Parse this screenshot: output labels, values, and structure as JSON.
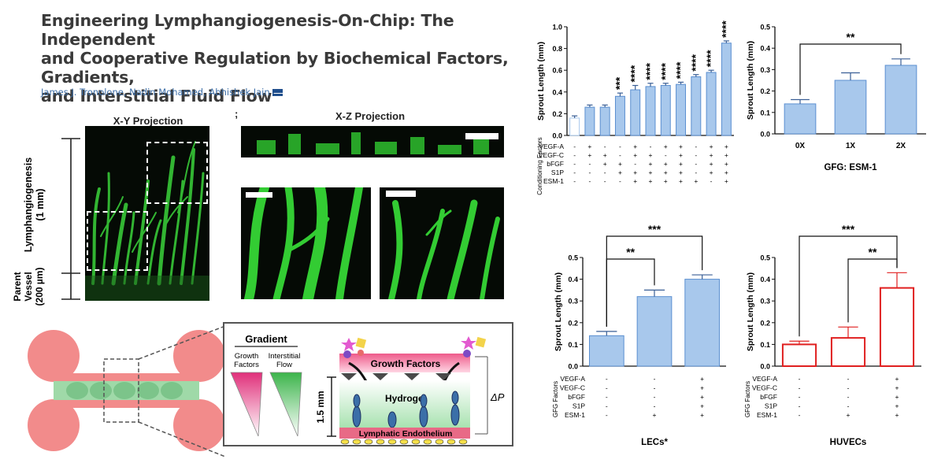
{
  "paper": {
    "title_lines": [
      "Engineering Lymphangiogenesis-On-Chip: The Independent",
      "and Cooperative Regulation by Biochemical Factors, Gradients,",
      "and Interstitial Fluid Flow"
    ],
    "authors": "James J. Tronolone, Nadin Mohamed, Abhishek Jain"
  },
  "micrographs": {
    "xy_title": "X-Y Projection",
    "xz_title": "X-Z Projection",
    "separator": ";",
    "lymph_label_1": "Lymphangiogenesis",
    "lymph_label_2": "(1 mm)",
    "parent_label_1": "Parent",
    "parent_label_2": "Vessel",
    "parent_label_3": "(200 µm)"
  },
  "schematic": {
    "gradient_title": "Gradient",
    "gf_label_1": "Growth",
    "gf_label_2": "Factors",
    "flow_label_1": "Interstitial",
    "flow_label_2": "Flow",
    "growth_factors": "Growth Factors",
    "hydrogel": "Hydrogel",
    "height": "1.5 mm",
    "endothelium": "Lymphatic Endothelium",
    "pressure": "ΔP"
  },
  "chart_data": [
    {
      "type": "bar",
      "ylabel": "Sprout Length (mm)",
      "ylim": [
        0,
        1.0
      ],
      "yticks": [
        "0.0",
        "0.2",
        "0.4",
        "0.6",
        "0.8",
        "1.0"
      ],
      "values": [
        0.16,
        0.26,
        0.26,
        0.36,
        0.42,
        0.45,
        0.46,
        0.47,
        0.54,
        0.58,
        0.85
      ],
      "errors": [
        0.02,
        0.02,
        0.02,
        0.03,
        0.04,
        0.03,
        0.02,
        0.02,
        0.02,
        0.02,
        0.02
      ],
      "filled": [
        false,
        true,
        true,
        true,
        true,
        true,
        true,
        true,
        true,
        true,
        true
      ],
      "significance": [
        "",
        "",
        "",
        "***",
        "****",
        "****",
        "****",
        "****",
        "****",
        "****",
        "****"
      ],
      "table_title": "Conditioning Factors",
      "rows": [
        {
          "label": "VEGF-A",
          "marks": [
            "-",
            "+",
            "-",
            "-",
            "+",
            "-",
            "+",
            "+",
            "-",
            "+",
            "+"
          ]
        },
        {
          "label": "VEGF-C",
          "marks": [
            "-",
            "+",
            "+",
            "-",
            "+",
            "+",
            "-",
            "+",
            "-",
            "+",
            "+"
          ]
        },
        {
          "label": "bFGF",
          "marks": [
            "-",
            "-",
            "+",
            "+",
            "-",
            "+",
            "+",
            "+",
            "-",
            "+",
            "+"
          ]
        },
        {
          "label": "S1P",
          "marks": [
            "-",
            "-",
            "-",
            "+",
            "+",
            "+",
            "+",
            "+",
            "-",
            "+",
            "+"
          ]
        },
        {
          "label": "ESM-1",
          "marks": [
            "-",
            "-",
            "-",
            "-",
            "+",
            "+",
            "+",
            "+",
            "+",
            "-",
            "+"
          ]
        }
      ]
    },
    {
      "type": "bar",
      "ylabel": "Sprout Length (mm)",
      "xlabel": "GFG: ESM-1",
      "ylim": [
        0,
        0.5
      ],
      "yticks": [
        "0.0",
        "0.1",
        "0.2",
        "0.3",
        "0.4",
        "0.5"
      ],
      "categories": [
        "0X",
        "1X",
        "2X"
      ],
      "values": [
        0.14,
        0.25,
        0.32
      ],
      "errors": [
        0.02,
        0.035,
        0.03
      ],
      "significance": [
        {
          "from": 0,
          "to": 2,
          "label": "**"
        }
      ]
    },
    {
      "type": "bar",
      "ylabel": "Sprout Length (mm)",
      "xlabel": "LECs*",
      "ylim": [
        0,
        0.5
      ],
      "yticks": [
        "0.0",
        "0.1",
        "0.2",
        "0.3",
        "0.4",
        "0.5"
      ],
      "values": [
        0.14,
        0.32,
        0.4
      ],
      "errors": [
        0.02,
        0.03,
        0.02
      ],
      "table_title": "GFG Factors",
      "rows": [
        {
          "label": "VEGF-A",
          "marks": [
            "-",
            "-",
            "+"
          ]
        },
        {
          "label": "VEGF-C",
          "marks": [
            "-",
            "-",
            "+"
          ]
        },
        {
          "label": "bFGF",
          "marks": [
            "-",
            "-",
            "+"
          ]
        },
        {
          "label": "S1P",
          "marks": [
            "-",
            "-",
            "+"
          ]
        },
        {
          "label": "ESM-1",
          "marks": [
            "-",
            "+",
            "+"
          ]
        }
      ],
      "significance": [
        {
          "from": 0,
          "to": 1,
          "label": "**"
        },
        {
          "from": 0,
          "to": 2,
          "label": "***"
        }
      ]
    },
    {
      "type": "bar",
      "ylabel": "Sprout Length (mm)",
      "xlabel": "HUVECs",
      "ylim": [
        0,
        0.5
      ],
      "yticks": [
        "0.0",
        "0.1",
        "0.2",
        "0.3",
        "0.4",
        "0.5"
      ],
      "values": [
        0.1,
        0.13,
        0.36
      ],
      "errors": [
        0.015,
        0.05,
        0.07
      ],
      "table_title": "GFG Factors",
      "rows": [
        {
          "label": "VEGF-A",
          "marks": [
            "-",
            "-",
            "+"
          ]
        },
        {
          "label": "VEGF-C",
          "marks": [
            "-",
            "-",
            "+"
          ]
        },
        {
          "label": "bFGF",
          "marks": [
            "-",
            "-",
            "+"
          ]
        },
        {
          "label": "S1P",
          "marks": [
            "-",
            "-",
            "+"
          ]
        },
        {
          "label": "ESM-1",
          "marks": [
            "-",
            "+",
            "+"
          ]
        }
      ],
      "significance": [
        {
          "from": 1,
          "to": 2,
          "label": "**"
        },
        {
          "from": 0,
          "to": 2,
          "label": "***"
        }
      ]
    }
  ],
  "colors": {
    "bar_blue": "#a8c8ec",
    "bar_red": "#e02020",
    "vessel_pink": "#f28b8b",
    "vessel_green": "#9fd9a8",
    "fluor_green": "#39d639"
  }
}
